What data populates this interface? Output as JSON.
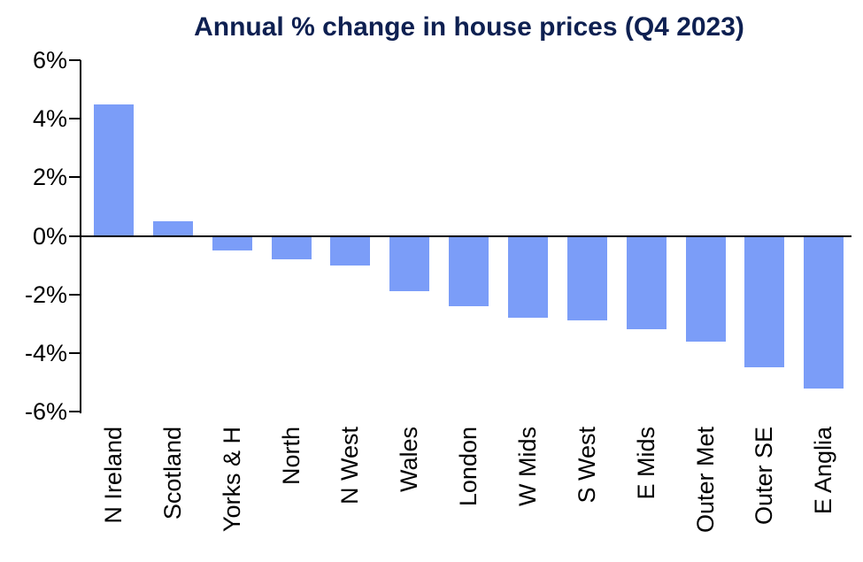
{
  "chart_data": {
    "type": "bar",
    "title": "Annual % change in house prices (Q4 2023)",
    "categories": [
      "N Ireland",
      "Scotland",
      "Yorks & H",
      "North",
      "N West",
      "Wales",
      "London",
      "W Mids",
      "S West",
      "E Mids",
      "Outer Met",
      "Outer SE",
      "E Anglia"
    ],
    "values": [
      4.5,
      0.5,
      -0.5,
      -0.8,
      -1.0,
      -1.9,
      -2.4,
      -2.8,
      -2.9,
      -3.2,
      -3.6,
      -4.5,
      -5.2
    ],
    "xlabel": "",
    "ylabel": "",
    "y_ticks": [
      "6%",
      "4%",
      "2%",
      "0%",
      "-2%",
      "-4%",
      "-6%"
    ],
    "y_tick_values": [
      6,
      4,
      2,
      0,
      -2,
      -4,
      -6
    ],
    "ylim": [
      -6,
      6
    ],
    "grid": false,
    "legend": false,
    "bar_color": "#7B9DF8",
    "title_color": "#0E2051",
    "axis_color": "#000000"
  }
}
